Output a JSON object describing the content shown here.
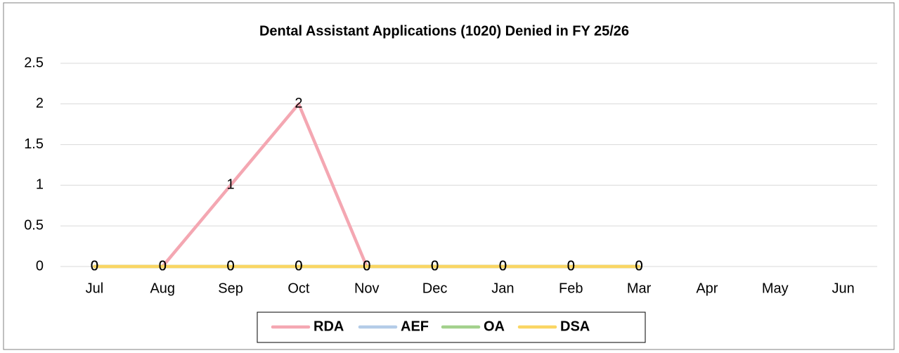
{
  "chart_data": {
    "type": "line",
    "title": "Dental Assistant Applications (1020) Denied in FY 25/26",
    "categories": [
      "Jul",
      "Aug",
      "Sep",
      "Oct",
      "Nov",
      "Dec",
      "Jan",
      "Feb",
      "Mar",
      "Apr",
      "May",
      "Jun"
    ],
    "series": [
      {
        "name": "RDA",
        "color": "#f4a7b2",
        "values": [
          0,
          0,
          1,
          2,
          0,
          0,
          0,
          0,
          0,
          null,
          null,
          null
        ]
      },
      {
        "name": "AEF",
        "color": "#b4cce8",
        "values": [
          0,
          0,
          0,
          0,
          0,
          0,
          0,
          0,
          0,
          null,
          null,
          null
        ]
      },
      {
        "name": "OA",
        "color": "#a3d18c",
        "values": [
          0,
          0,
          0,
          0,
          0,
          0,
          0,
          0,
          0,
          null,
          null,
          null
        ]
      },
      {
        "name": "DSA",
        "color": "#fad663",
        "values": [
          0,
          0,
          0,
          0,
          0,
          0,
          0,
          0,
          0,
          null,
          null,
          null
        ]
      }
    ],
    "ylim": [
      0,
      2.5
    ],
    "yticks": [
      0,
      0.5,
      1,
      1.5,
      2,
      2.5
    ],
    "grid": true,
    "legend": "bottom"
  }
}
